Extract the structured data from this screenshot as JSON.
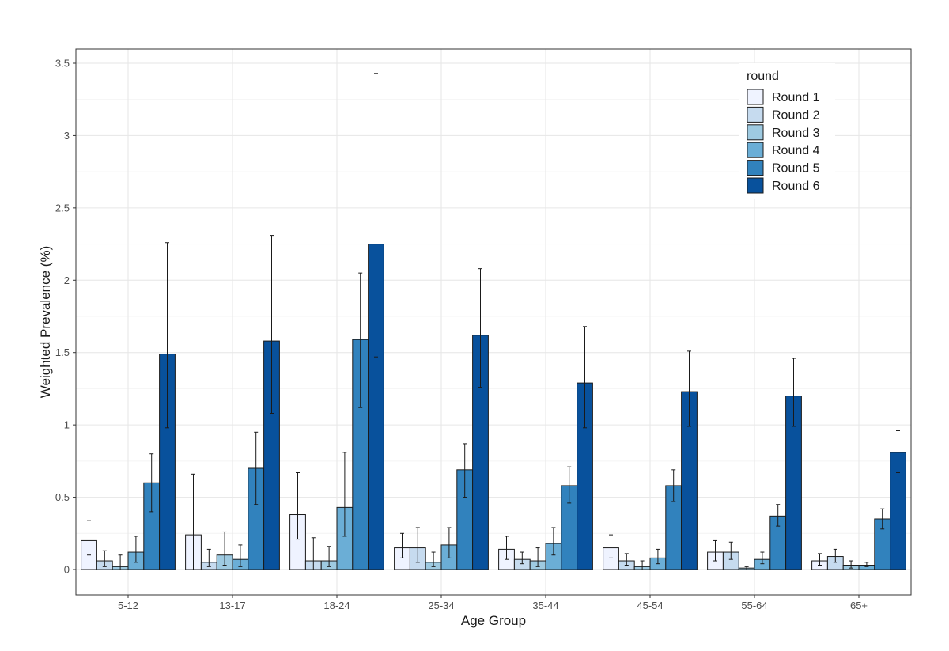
{
  "chart_data": {
    "type": "bar",
    "title": "",
    "xlabel": "Age Group",
    "ylabel": "Weighted Prevalence (%)",
    "ylim": [
      -0.15,
      3.6
    ],
    "yticks": [
      0,
      0.5,
      1,
      1.5,
      2,
      2.5,
      3,
      3.5
    ],
    "ytick_labels": [
      "0",
      "0.5",
      "1",
      "1.5",
      "2",
      "2.5",
      "3",
      "3.5"
    ],
    "grid": true,
    "legend_title": "round",
    "legend_position": "top-right",
    "categories": [
      "5-12",
      "13-17",
      "18-24",
      "25-34",
      "35-44",
      "45-54",
      "55-64",
      "65+"
    ],
    "series": [
      {
        "name": "Round 1",
        "color": "#eff3ff",
        "values": [
          0.2,
          0.24,
          0.38,
          0.15,
          0.14,
          0.15,
          0.12,
          0.06
        ],
        "lower": [
          0.1,
          0.0,
          0.21,
          0.08,
          0.07,
          0.08,
          0.06,
          0.03
        ],
        "upper": [
          0.34,
          0.66,
          0.67,
          0.25,
          0.23,
          0.24,
          0.2,
          0.11
        ]
      },
      {
        "name": "Round 2",
        "color": "#c6dbef",
        "values": [
          0.06,
          0.05,
          0.06,
          0.15,
          0.07,
          0.06,
          0.12,
          0.09
        ],
        "lower": [
          0.02,
          0.02,
          0.0,
          0.05,
          0.04,
          0.03,
          0.07,
          0.05
        ],
        "upper": [
          0.13,
          0.14,
          0.22,
          0.29,
          0.12,
          0.11,
          0.19,
          0.14
        ]
      },
      {
        "name": "Round 3",
        "color": "#9ecae1",
        "values": [
          0.02,
          0.1,
          0.06,
          0.05,
          0.06,
          0.02,
          0.01,
          0.03
        ],
        "lower": [
          0.0,
          0.03,
          0.02,
          0.02,
          0.02,
          0.0,
          0.0,
          0.01
        ],
        "upper": [
          0.1,
          0.26,
          0.16,
          0.12,
          0.15,
          0.06,
          0.02,
          0.06
        ]
      },
      {
        "name": "Round 4",
        "color": "#6baed6",
        "values": [
          0.12,
          0.07,
          0.43,
          0.17,
          0.18,
          0.08,
          0.07,
          0.03
        ],
        "lower": [
          0.05,
          0.02,
          0.23,
          0.08,
          0.1,
          0.04,
          0.04,
          0.02
        ],
        "upper": [
          0.23,
          0.17,
          0.81,
          0.29,
          0.29,
          0.14,
          0.12,
          0.05
        ]
      },
      {
        "name": "Round 5",
        "color": "#3182bd",
        "values": [
          0.6,
          0.7,
          1.59,
          0.69,
          0.58,
          0.58,
          0.37,
          0.35
        ],
        "lower": [
          0.4,
          0.45,
          1.12,
          0.5,
          0.46,
          0.47,
          0.3,
          0.28
        ],
        "upper": [
          0.8,
          0.95,
          2.05,
          0.87,
          0.71,
          0.69,
          0.45,
          0.42
        ]
      },
      {
        "name": "Round 6",
        "color": "#08519c",
        "values": [
          1.49,
          1.58,
          2.25,
          1.62,
          1.29,
          1.23,
          1.2,
          0.81
        ],
        "lower": [
          0.98,
          1.08,
          1.47,
          1.26,
          0.98,
          0.99,
          0.99,
          0.67
        ],
        "upper": [
          2.26,
          2.31,
          3.43,
          2.08,
          1.68,
          1.51,
          1.46,
          0.96
        ]
      }
    ]
  }
}
